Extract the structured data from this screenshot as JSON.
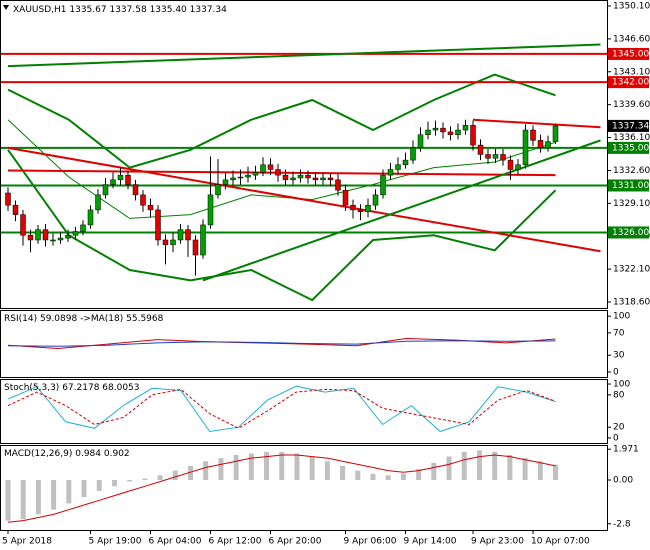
{
  "chart_data": {
    "type": "candlestick",
    "symbol": "XAUUSD,H1",
    "last_bar_labels": [
      "1335.67",
      "1337.58",
      "1335.40",
      "1337.34"
    ],
    "up_color": "#00a000",
    "down_color": "#e00000",
    "open": [
      1330.2,
      1328.9,
      1327.9,
      1325.7,
      1325.2,
      1326.3,
      1325.2,
      1325.2,
      1325.4,
      1325.7,
      1326.1,
      1326.8,
      1328.4,
      1330.0,
      1331.1,
      1331.6,
      1332.1,
      1331.1,
      1330.0,
      1328.9,
      1328.4,
      1325.2,
      1324.7,
      1325.2,
      1326.3,
      1325.2,
      1323.6,
      1326.8,
      1330.0,
      1331.1,
      1331.6,
      1331.8,
      1331.9,
      1332.1,
      1332.4,
      1333.2,
      1332.7,
      1332.1,
      1331.6,
      1331.8,
      1332.1,
      1331.8,
      1331.6,
      1331.8,
      1331.6,
      1330.5,
      1328.9,
      1328.4,
      1328.2,
      1328.9,
      1330.0,
      1332.1,
      1332.7,
      1333.2,
      1333.7,
      1335.0,
      1336.4,
      1336.9,
      1337.1,
      1336.7,
      1336.4,
      1336.9,
      1337.4,
      1335.3,
      1334.3,
      1333.9,
      1334.3,
      1333.7,
      1332.7,
      1333.2,
      1336.9,
      1335.8,
      1335.0,
      1335.67
    ],
    "high": [
      1330.8,
      1329.4,
      1328.4,
      1326.3,
      1326.8,
      1326.9,
      1325.9,
      1326.0,
      1326.3,
      1326.6,
      1327.3,
      1328.9,
      1330.6,
      1331.8,
      1332.4,
      1332.9,
      1332.6,
      1331.6,
      1330.5,
      1329.6,
      1328.9,
      1325.8,
      1326.0,
      1326.9,
      1326.8,
      1325.7,
      1327.4,
      1334.1,
      1333.8,
      1332.3,
      1332.6,
      1332.7,
      1333.0,
      1333.1,
      1334.0,
      1333.9,
      1333.3,
      1332.7,
      1332.5,
      1332.7,
      1332.6,
      1332.4,
      1332.4,
      1332.3,
      1332.2,
      1331.1,
      1329.5,
      1329.0,
      1329.6,
      1330.6,
      1332.7,
      1333.4,
      1334.0,
      1334.5,
      1335.8,
      1337.2,
      1337.8,
      1337.9,
      1337.7,
      1337.3,
      1337.6,
      1338.0,
      1337.9,
      1335.9,
      1334.9,
      1334.9,
      1334.9,
      1334.2,
      1333.8,
      1337.5,
      1337.4,
      1336.4,
      1336.3,
      1337.58
    ],
    "low": [
      1328.3,
      1327.2,
      1324.6,
      1323.9,
      1324.8,
      1324.5,
      1324.6,
      1324.8,
      1325.0,
      1325.2,
      1325.7,
      1326.4,
      1328.0,
      1329.6,
      1330.7,
      1331.0,
      1330.6,
      1329.4,
      1328.2,
      1327.6,
      1324.6,
      1322.6,
      1323.9,
      1324.8,
      1323.4,
      1321.4,
      1323.2,
      1326.4,
      1329.6,
      1330.6,
      1331.0,
      1331.1,
      1331.3,
      1331.6,
      1332.0,
      1332.1,
      1331.4,
      1331.0,
      1331.1,
      1331.3,
      1331.2,
      1331.0,
      1331.1,
      1330.9,
      1329.9,
      1328.3,
      1327.5,
      1327.3,
      1327.6,
      1328.4,
      1329.6,
      1331.6,
      1332.2,
      1332.8,
      1333.3,
      1334.6,
      1335.9,
      1336.3,
      1336.0,
      1335.8,
      1335.9,
      1336.4,
      1334.7,
      1333.7,
      1333.3,
      1333.4,
      1333.1,
      1331.6,
      1332.1,
      1332.8,
      1335.2,
      1334.5,
      1334.6,
      1335.4
    ],
    "close": [
      1328.9,
      1327.9,
      1325.7,
      1325.2,
      1326.3,
      1325.2,
      1325.2,
      1325.4,
      1325.7,
      1326.1,
      1326.8,
      1328.4,
      1330.0,
      1331.1,
      1331.6,
      1332.1,
      1331.1,
      1330.0,
      1328.9,
      1328.4,
      1325.2,
      1324.7,
      1325.2,
      1326.3,
      1325.2,
      1323.6,
      1326.8,
      1330.0,
      1331.1,
      1331.6,
      1331.8,
      1331.9,
      1332.1,
      1332.4,
      1333.2,
      1332.7,
      1332.1,
      1331.6,
      1331.8,
      1332.1,
      1331.8,
      1331.6,
      1331.8,
      1331.6,
      1330.5,
      1328.9,
      1328.4,
      1328.2,
      1328.9,
      1330.0,
      1332.1,
      1332.7,
      1333.2,
      1333.7,
      1335.0,
      1336.4,
      1336.9,
      1337.1,
      1336.7,
      1336.4,
      1336.9,
      1337.4,
      1335.3,
      1334.3,
      1333.9,
      1334.3,
      1333.7,
      1332.7,
      1333.2,
      1336.9,
      1335.8,
      1335.0,
      1335.67,
      1337.34
    ],
    "ylim": [
      1317.96,
      1350.74
    ],
    "yticks": [
      {
        "value": 1350.1,
        "label": "1350.10"
      },
      {
        "value": 1346.6,
        "label": "1346.60"
      },
      {
        "value": 1343.1,
        "label": "1343.10"
      },
      {
        "value": 1339.6,
        "label": "1339.60"
      },
      {
        "value": 1336.1,
        "label": "1336.10"
      },
      {
        "value": 1332.6,
        "label": "1332.60"
      },
      {
        "value": 1329.1,
        "label": "1329.10"
      },
      {
        "value": 1325.6,
        "label": "1325.60"
      },
      {
        "value": 1322.1,
        "label": "1322.10"
      },
      {
        "value": 1318.6,
        "label": "1318.60"
      }
    ],
    "levels": [
      {
        "value": 1345,
        "label": "1345.00",
        "color": "#e00000"
      },
      {
        "value": 1342,
        "label": "1342.00",
        "color": "#e00000"
      },
      {
        "value": 1335,
        "label": "1335.00",
        "color": "#008000"
      },
      {
        "value": 1331,
        "label": "1331.00",
        "color": "#008000"
      },
      {
        "value": 1326,
        "label": "1326.00",
        "color": "#008000"
      }
    ],
    "trendlines": [
      {
        "from": [
          0,
          1335.0
        ],
        "to": [
          79,
          1324.0
        ],
        "color": "#e00000"
      },
      {
        "from": [
          0,
          1332.6
        ],
        "to": [
          73,
          1332.1
        ],
        "color": "#e00000"
      },
      {
        "from": [
          62,
          1338.0
        ],
        "to": [
          79,
          1337.2
        ],
        "color": "#e00000"
      },
      {
        "from": [
          26,
          1320.9
        ],
        "to": [
          79,
          1335.8
        ],
        "color": "#008000"
      },
      {
        "from": [
          0,
          1343.7
        ],
        "to": [
          79,
          1346.0
        ],
        "color": "#008000"
      }
    ],
    "bollinger": {
      "color": "#008000",
      "upper": [
        1341.2,
        1338.0,
        1332.9,
        1334.8,
        1338.0,
        1340.1,
        1336.9,
        1340.1,
        1342.8,
        1340.6
      ],
      "middle": [
        1338.0,
        1331.9,
        1327.5,
        1327.9,
        1330.0,
        1329.5,
        1331.1,
        1332.9,
        1333.5,
        1335.6
      ],
      "lower": [
        1334.8,
        1325.7,
        1322.0,
        1320.9,
        1322.0,
        1318.8,
        1325.2,
        1325.7,
        1324.1,
        1330.5
      ]
    },
    "x_labels": {
      "bars": [
        0,
        11,
        19,
        27,
        35,
        45,
        53,
        62,
        70
      ],
      "labels": [
        "5 Apr 2018",
        "5 Apr 19:00",
        "6 Apr 04:00",
        "6 Apr 12:00",
        "6 Apr 20:00",
        "9 Apr 06:00",
        "9 Apr 14:00",
        "9 Apr 23:00",
        "10 Apr 07:00"
      ]
    },
    "panels": [
      {
        "type": "line",
        "ylim": [
          -9,
          111
        ],
        "yticks": [
          100,
          70,
          30,
          0
        ],
        "series": [
          {
            "name": "RSI(14)",
            "color": "#d00000",
            "values": [
              48,
              42,
              50,
              58,
              54,
              52,
              50,
              47,
              60,
              57,
              52,
              59.0898
            ]
          },
          {
            "name": "->MA(18)",
            "color": "#1f3fbf",
            "values": [
              47,
              46,
              48,
              52,
              54,
              53,
              51,
              50,
              55,
              56,
              55,
              55.5968
            ]
          }
        ]
      },
      {
        "type": "line",
        "ylim": [
          -9.3,
          109.3
        ],
        "yticks": [
          100,
          80,
          20,
          0
        ],
        "series": [
          {
            "name": "Stoch(5,3,3)",
            "color": "#20b0d0",
            "values": [
              72,
              95,
              30,
              18,
              60,
              92,
              88,
              12,
              20,
              70,
              96,
              85,
              92,
              25,
              60,
              12,
              30,
              95,
              85,
              67.2178
            ]
          },
          {
            "color": "#d00000",
            "style": "dashed",
            "values": [
              60,
              85,
              60,
              25,
              38,
              80,
              90,
              45,
              18,
              50,
              85,
              90,
              88,
              55,
              45,
              35,
              25,
              70,
              88,
              68.0053
            ]
          }
        ]
      },
      {
        "type": "macd",
        "ylim": [
          -3.2,
          2.24
        ],
        "yticks": [
          1.971,
          {
            "value": 0,
            "label": "0.00"
          },
          -2.8
        ],
        "series": [
          {
            "name": "MACD(12,26,9)",
            "color": "#c0c0c0",
            "style": "histogram",
            "values": [
              -2.6,
              -2.5,
              -2.2,
              -1.9,
              -1.5,
              -1.1,
              -0.7,
              -0.4,
              -0.1,
              0.1,
              0.3,
              0.6,
              0.9,
              1.2,
              1.4,
              1.6,
              1.7,
              1.8,
              1.8,
              1.7,
              1.5,
              1.2,
              0.9,
              0.6,
              0.4,
              0.3,
              0.4,
              0.7,
              1.1,
              1.5,
              1.8,
              1.9,
              1.8,
              1.6,
              1.4,
              1.2,
              0.984
            ]
          },
          {
            "color": "#d00000",
            "values": [
              -2.7,
              -2.6,
              -2.4,
              -2.2,
              -1.9,
              -1.6,
              -1.3,
              -1.0,
              -0.7,
              -0.4,
              -0.1,
              0.2,
              0.5,
              0.8,
              1.0,
              1.2,
              1.4,
              1.5,
              1.6,
              1.6,
              1.5,
              1.4,
              1.2,
              1.0,
              0.8,
              0.6,
              0.5,
              0.6,
              0.8,
              1.0,
              1.3,
              1.5,
              1.6,
              1.5,
              1.3,
              1.1,
              0.902
            ]
          }
        ]
      }
    ]
  }
}
